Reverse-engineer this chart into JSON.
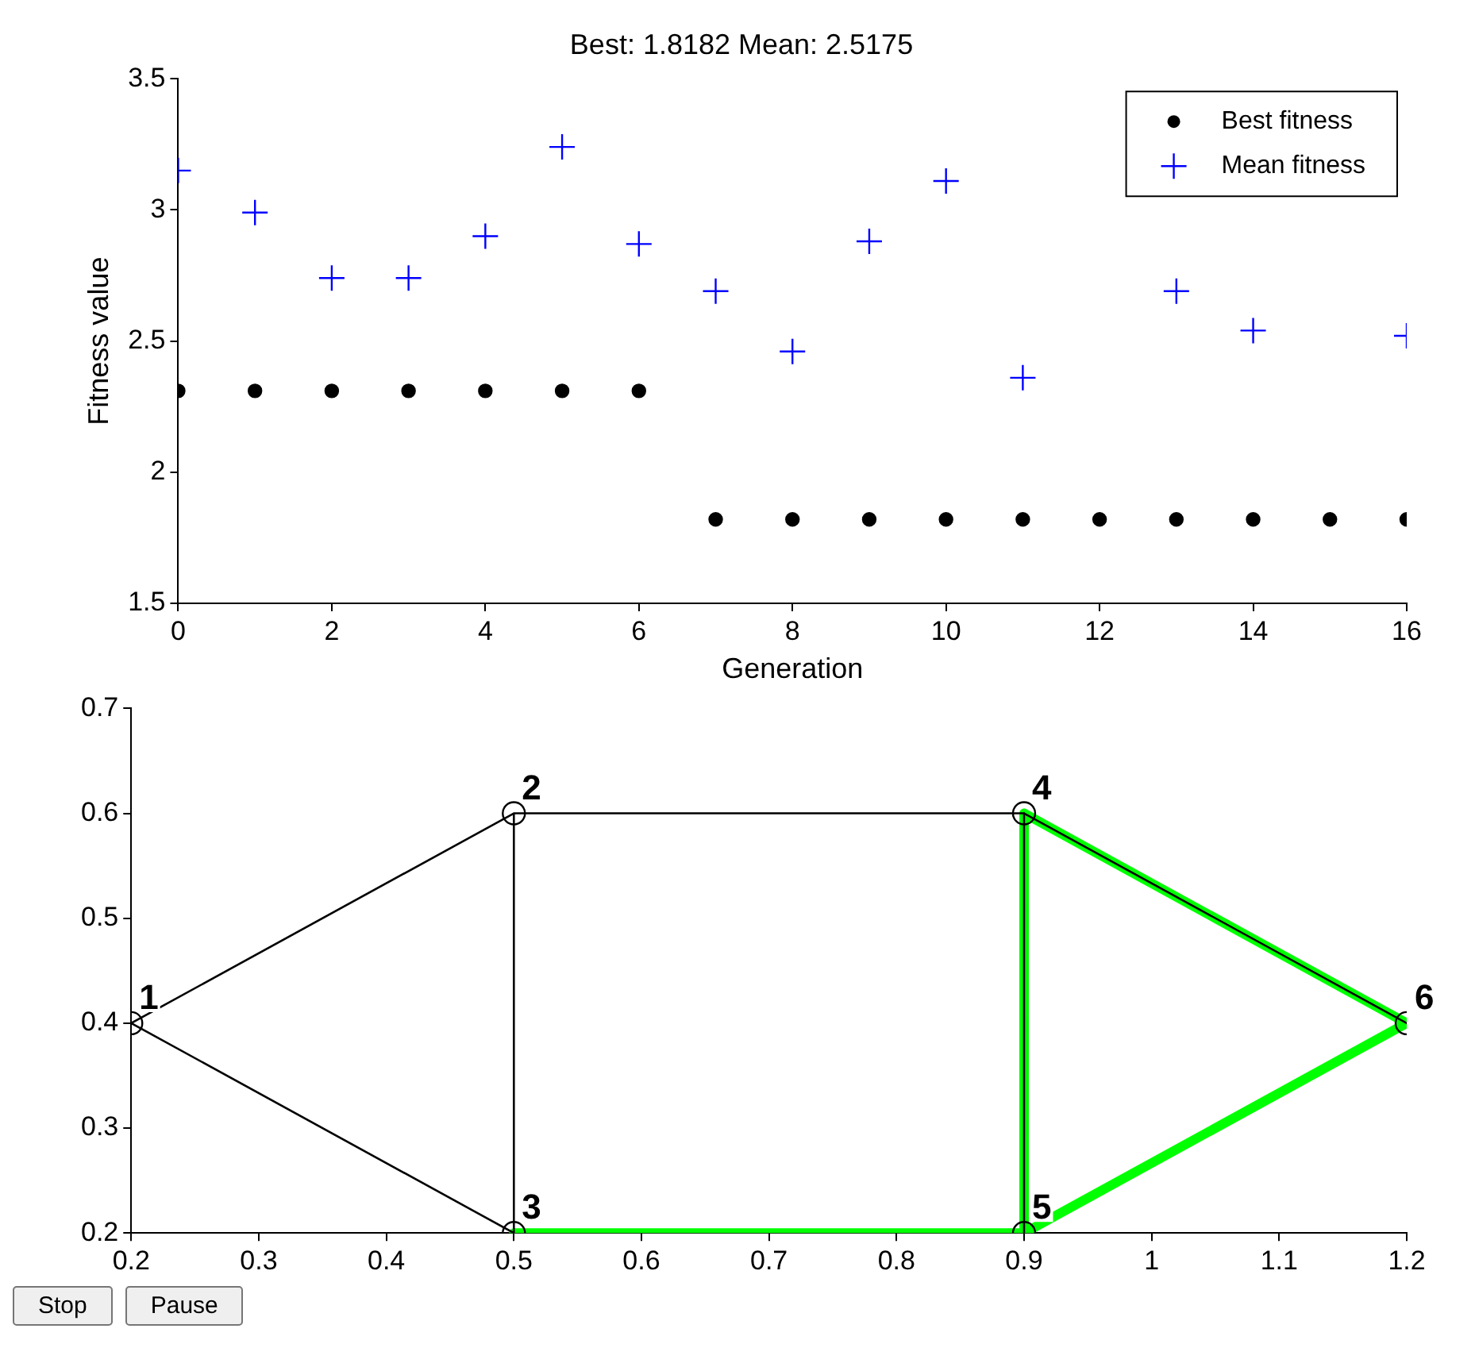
{
  "chart_data": [
    {
      "type": "scatter",
      "title": "Best: 1.8182 Mean: 2.5175",
      "xlabel": "Generation",
      "ylabel": "Fitness value",
      "x": [
        0,
        1,
        2,
        3,
        4,
        5,
        6,
        7,
        8,
        9,
        10,
        11,
        12,
        13,
        14,
        15,
        16
      ],
      "xlim": [
        0,
        16
      ],
      "xticks": [
        0,
        2,
        4,
        6,
        8,
        10,
        12,
        14,
        16
      ],
      "ylim": [
        1.5,
        3.5
      ],
      "yticks": [
        1.5,
        2,
        2.5,
        3,
        3.5
      ],
      "legend": "top right",
      "grid": false,
      "series": [
        {
          "name": "Best fitness",
          "color": "#000000",
          "marker": "circle",
          "values": [
            2.31,
            2.31,
            2.31,
            2.31,
            2.31,
            2.31,
            2.31,
            1.82,
            1.82,
            1.82,
            1.82,
            1.82,
            1.82,
            1.82,
            1.82,
            1.82,
            1.82
          ]
        },
        {
          "name": "Mean fitness",
          "color": "#0000ff",
          "marker": "cross",
          "values": [
            3.15,
            2.99,
            2.74,
            2.74,
            2.9,
            3.24,
            2.87,
            2.69,
            2.46,
            2.88,
            3.11,
            2.36,
            null,
            2.69,
            2.54,
            null,
            2.52
          ]
        }
      ]
    },
    {
      "type": "line",
      "xlim": [
        0.2,
        1.2
      ],
      "xticks": [
        0.2,
        0.3,
        0.4,
        0.5,
        0.6,
        0.7,
        0.8,
        0.9,
        1,
        1.1,
        1.2
      ],
      "ylim": [
        0.2,
        0.7
      ],
      "yticks": [
        0.2,
        0.3,
        0.4,
        0.5,
        0.6,
        0.7
      ],
      "grid": false,
      "legend": false,
      "series": [
        {
          "type": "line",
          "color": "#00ff00",
          "x": [
            0.5,
            0.9,
            1.2,
            0.9,
            0.9
          ],
          "values": [
            0.2,
            0.2,
            0.4,
            0.6,
            0.2
          ]
        },
        {
          "type": "line",
          "color": "#000000",
          "x": [
            0.9,
            0.9,
            0.5,
            0.2,
            0.5,
            0.5
          ],
          "values": [
            0.2,
            0.6,
            0.6,
            0.4,
            0.2,
            0.6
          ]
        },
        {
          "type": "line",
          "color": "#000000",
          "x": [
            0.9,
            1.2
          ],
          "values": [
            0.6,
            0.4
          ]
        },
        {
          "type": "scatter",
          "color": "#000000",
          "marker": "circle",
          "x": [
            0.2,
            0.5,
            0.5,
            0.9,
            0.9,
            1.2
          ],
          "values": [
            0.4,
            0.6,
            0.2,
            0.6,
            0.2,
            0.4
          ]
        }
      ],
      "annotations": [
        {
          "text": "1",
          "x": 0.2,
          "y": 0.4
        },
        {
          "text": "2",
          "x": 0.5,
          "y": 0.6
        },
        {
          "text": "3",
          "x": 0.5,
          "y": 0.2
        },
        {
          "text": "4",
          "x": 0.9,
          "y": 0.6
        },
        {
          "text": "5",
          "x": 0.9,
          "y": 0.2
        },
        {
          "text": "6",
          "x": 1.2,
          "y": 0.4
        },
        "Stop",
        "Pause"
      ]
    }
  ]
}
